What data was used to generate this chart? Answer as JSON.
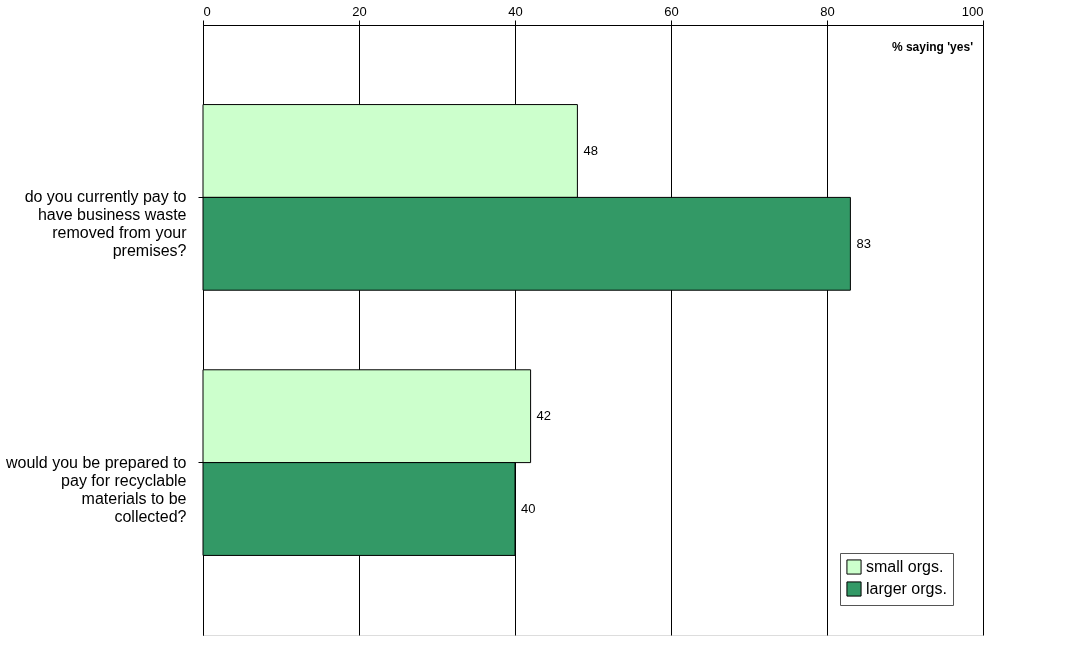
{
  "chart_data": {
    "type": "bar",
    "orientation": "horizontal",
    "categories": [
      "do you currently pay to have business waste removed from your premises?",
      "would you be prepared to pay for recyclable materials to be collected?"
    ],
    "series": [
      {
        "name": "small orgs.",
        "color": "#ccffcc",
        "values": [
          48,
          42
        ]
      },
      {
        "name": "larger orgs.",
        "color": "#339966",
        "values": [
          83,
          40
        ]
      }
    ],
    "xlim": [
      0,
      100
    ],
    "xticks": [
      0,
      20,
      40,
      60,
      80,
      100
    ],
    "grid": "x",
    "data_labels": true,
    "legend": "bottom right",
    "annotations": [
      "% saying 'yes'"
    ]
  }
}
